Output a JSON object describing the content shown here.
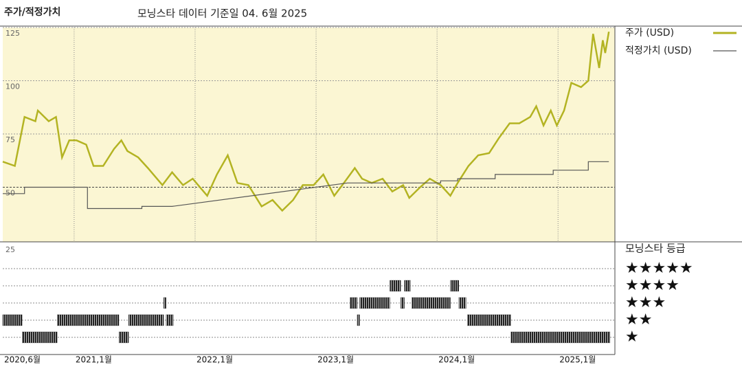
{
  "chart_data": [
    {
      "type": "line",
      "title": "주가/적정가치",
      "subtitle": "모닝스타 데이터 기준일 04. 6월 2025",
      "xlim": [
        2020.41,
        2025.47
      ],
      "xticks": [
        {
          "value": 2020.41,
          "label": "2020,6월"
        },
        {
          "value": 2021,
          "label": "2021,1월"
        },
        {
          "value": 2022,
          "label": "2022,1월"
        },
        {
          "value": 2023,
          "label": "2023,1월"
        },
        {
          "value": 2024,
          "label": "2024,1월"
        },
        {
          "value": 2025,
          "label": "2025,1월"
        }
      ],
      "ylim": [
        25,
        125
      ],
      "yticks": [
        50,
        75,
        100,
        125
      ],
      "grid": true,
      "background": "#fbf6d3",
      "series": [
        {
          "name": "주가 (USD)",
          "color": "#b3b322",
          "x": [
            2020.41,
            2020.51,
            2020.59,
            2020.68,
            2020.7,
            2020.79,
            2020.85,
            2020.9,
            2020.96,
            2021.02,
            2021.1,
            2021.16,
            2021.24,
            2021.33,
            2021.39,
            2021.44,
            2021.53,
            2021.61,
            2021.73,
            2021.81,
            2021.9,
            2021.98,
            2022.1,
            2022.18,
            2022.27,
            2022.35,
            2022.44,
            2022.55,
            2022.64,
            2022.72,
            2022.81,
            2022.89,
            2022.98,
            2023.06,
            2023.15,
            2023.23,
            2023.32,
            2023.38,
            2023.46,
            2023.55,
            2023.63,
            2023.72,
            2023.77,
            2023.86,
            2023.94,
            2024.03,
            2024.11,
            2024.17,
            2024.26,
            2024.34,
            2024.43,
            2024.51,
            2024.6,
            2024.68,
            2024.77,
            2024.82,
            2024.88,
            2024.94,
            2024.99,
            2025.05,
            2025.11,
            2025.19,
            2025.25,
            2025.29,
            2025.34,
            2025.37,
            2025.39,
            2025.42
          ],
          "values": [
            62,
            60,
            83,
            81,
            86,
            81,
            83,
            64,
            72,
            72,
            70,
            60,
            60,
            68,
            72,
            67,
            64,
            59,
            51,
            57,
            51,
            54,
            46,
            56,
            65,
            52,
            51,
            41,
            44,
            39,
            44,
            51,
            51,
            56,
            46,
            52,
            59,
            54,
            52,
            54,
            48,
            51,
            45,
            50,
            54,
            51,
            46,
            52,
            60,
            65,
            66,
            73,
            80,
            80,
            83,
            88,
            79,
            86,
            79,
            86,
            99,
            97,
            100,
            122,
            106,
            119,
            113,
            123
          ]
        },
        {
          "name": "적정가치 (USD)",
          "color": "#555555",
          "x": [
            2020.41,
            2020.59,
            2020.59,
            2021.11,
            2021.11,
            2021.56,
            2021.56,
            2021.81,
            2023.26,
            2024.03,
            2024.03,
            2024.17,
            2024.17,
            2024.48,
            2024.48,
            2024.96,
            2024.96,
            2025.25,
            2025.25,
            2025.42
          ],
          "values": [
            47,
            47,
            50,
            50,
            40,
            40,
            41,
            41,
            52,
            52,
            53,
            53,
            54,
            54,
            56,
            56,
            58,
            58,
            62,
            62
          ]
        }
      ]
    },
    {
      "type": "rating-timeline",
      "title": "모닝스타 등급",
      "corner_label": "25",
      "levels": [
        "★",
        "★★",
        "★★★",
        "★★★★",
        "★★★★★"
      ],
      "color": "#222222",
      "periods": [
        {
          "start": 2020.41,
          "end": 2020.57,
          "rating": 2
        },
        {
          "start": 2020.57,
          "end": 2020.86,
          "rating": 1
        },
        {
          "start": 2020.86,
          "end": 2021.37,
          "rating": 2
        },
        {
          "start": 2021.37,
          "end": 2021.45,
          "rating": 1
        },
        {
          "start": 2021.45,
          "end": 2021.74,
          "rating": 2
        },
        {
          "start": 2021.74,
          "end": 2021.76,
          "rating": 3
        },
        {
          "start": 2021.76,
          "end": 2021.82,
          "rating": 2
        },
        {
          "start": 2023.28,
          "end": 2023.34,
          "rating": 3
        },
        {
          "start": 2023.34,
          "end": 2023.36,
          "rating": 2
        },
        {
          "start": 2023.36,
          "end": 2023.61,
          "rating": 3
        },
        {
          "start": 2023.61,
          "end": 2023.7,
          "rating": 4
        },
        {
          "start": 2023.7,
          "end": 2023.73,
          "rating": 3
        },
        {
          "start": 2023.73,
          "end": 2023.78,
          "rating": 4
        },
        {
          "start": 2023.79,
          "end": 2024.11,
          "rating": 3
        },
        {
          "start": 2024.11,
          "end": 2024.18,
          "rating": 4
        },
        {
          "start": 2024.18,
          "end": 2024.24,
          "rating": 3
        },
        {
          "start": 2024.25,
          "end": 2024.61,
          "rating": 2
        },
        {
          "start": 2024.61,
          "end": 2025.43,
          "rating": 1
        }
      ]
    }
  ]
}
